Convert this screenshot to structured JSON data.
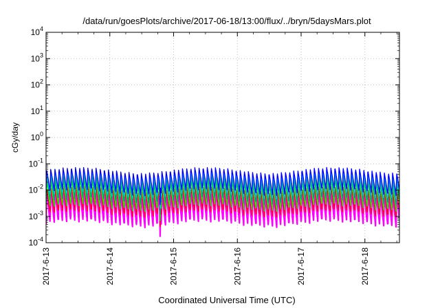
{
  "chart_data": {
    "type": "line",
    "title": "/data/run/goesPlots/archive/2017-06-18/13:00/flux/../bryn/5daysMars.plot",
    "ylabel": "cGy/day",
    "xlabel": "Coordinated Universal Time (UTC)",
    "yscale": "log",
    "ylim": [
      0.0001,
      10000
    ],
    "xlim": [
      "2017-06-13 00:00",
      "2017-06-18 13:00"
    ],
    "grid": true,
    "legend": "none",
    "y_ticks": [
      {
        "base": "10",
        "exp": "-4"
      },
      {
        "base": "10",
        "exp": "-3"
      },
      {
        "base": "10",
        "exp": "-2"
      },
      {
        "base": "10",
        "exp": "-1"
      },
      {
        "base": "10",
        "exp": "0"
      },
      {
        "base": "10",
        "exp": "1"
      },
      {
        "base": "10",
        "exp": "2"
      },
      {
        "base": "10",
        "exp": "3"
      },
      {
        "base": "10",
        "exp": "4"
      }
    ],
    "x_ticks": [
      "2017-6-13",
      "2017-6-14",
      "2017-6-15",
      "2017-6-16",
      "2017-6-17",
      "2017-6-18"
    ],
    "orbit_period_hours": 1.55,
    "data_gap": [
      "2017-06-14 18:50",
      "2017-06-14 19:00"
    ],
    "series": [
      {
        "color": "#ff0000",
        "peak": 0.012,
        "trough": 0.0012
      },
      {
        "color": "#ff00ff",
        "peak": 0.008,
        "trough": 0.0005
      },
      {
        "color": "#00ff00",
        "peak": 0.022,
        "trough": 0.002
      },
      {
        "color": "#009999",
        "peak": 0.035,
        "trough": 0.0035
      },
      {
        "color": "#00c8ff",
        "peak": 0.05,
        "trough": 0.006
      },
      {
        "color": "#0000ff",
        "peak": 0.06,
        "trough": 0.008
      }
    ]
  }
}
